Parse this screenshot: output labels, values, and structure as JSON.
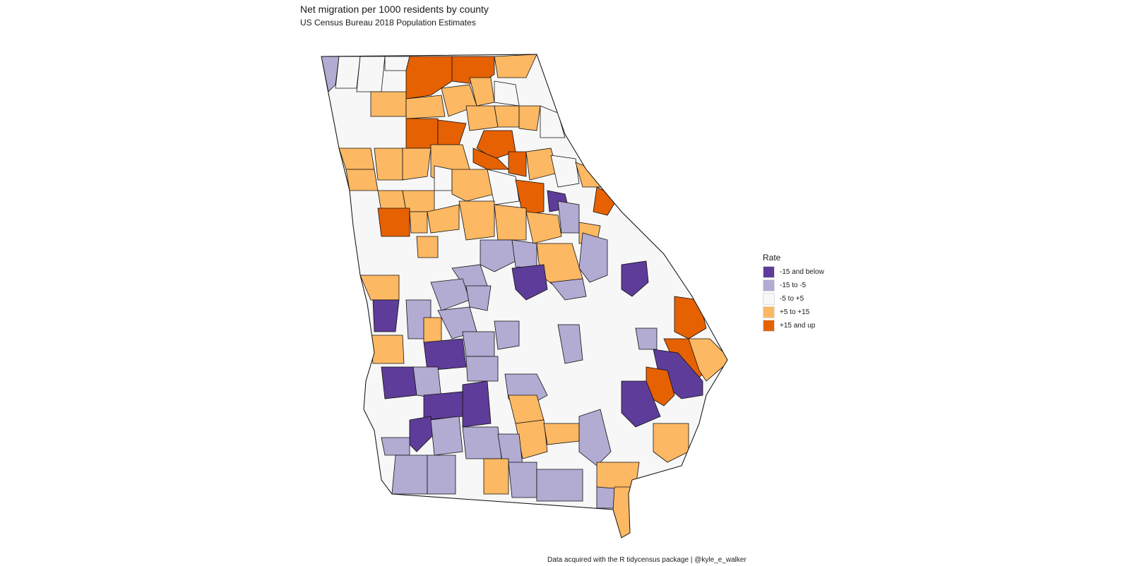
{
  "map": {
    "title": "Net migration per 1000 residents by county",
    "subtitle": "US Census Bureau 2018 Population Estimates",
    "caption": "Data acquired with the R tidycensus package | @kyle_e_walker"
  },
  "legend": {
    "title": "Rate",
    "items": [
      {
        "label": "-15 and below",
        "color": "#5e3c99"
      },
      {
        "label": "-15 to -5",
        "color": "#b2abd2"
      },
      {
        "label": "-5 to +5",
        "color": "#f7f7f7"
      },
      {
        "label": "+5 to +15",
        "color": "#fdb863"
      },
      {
        "label": "+15 and up",
        "color": "#e66101"
      }
    ]
  }
}
